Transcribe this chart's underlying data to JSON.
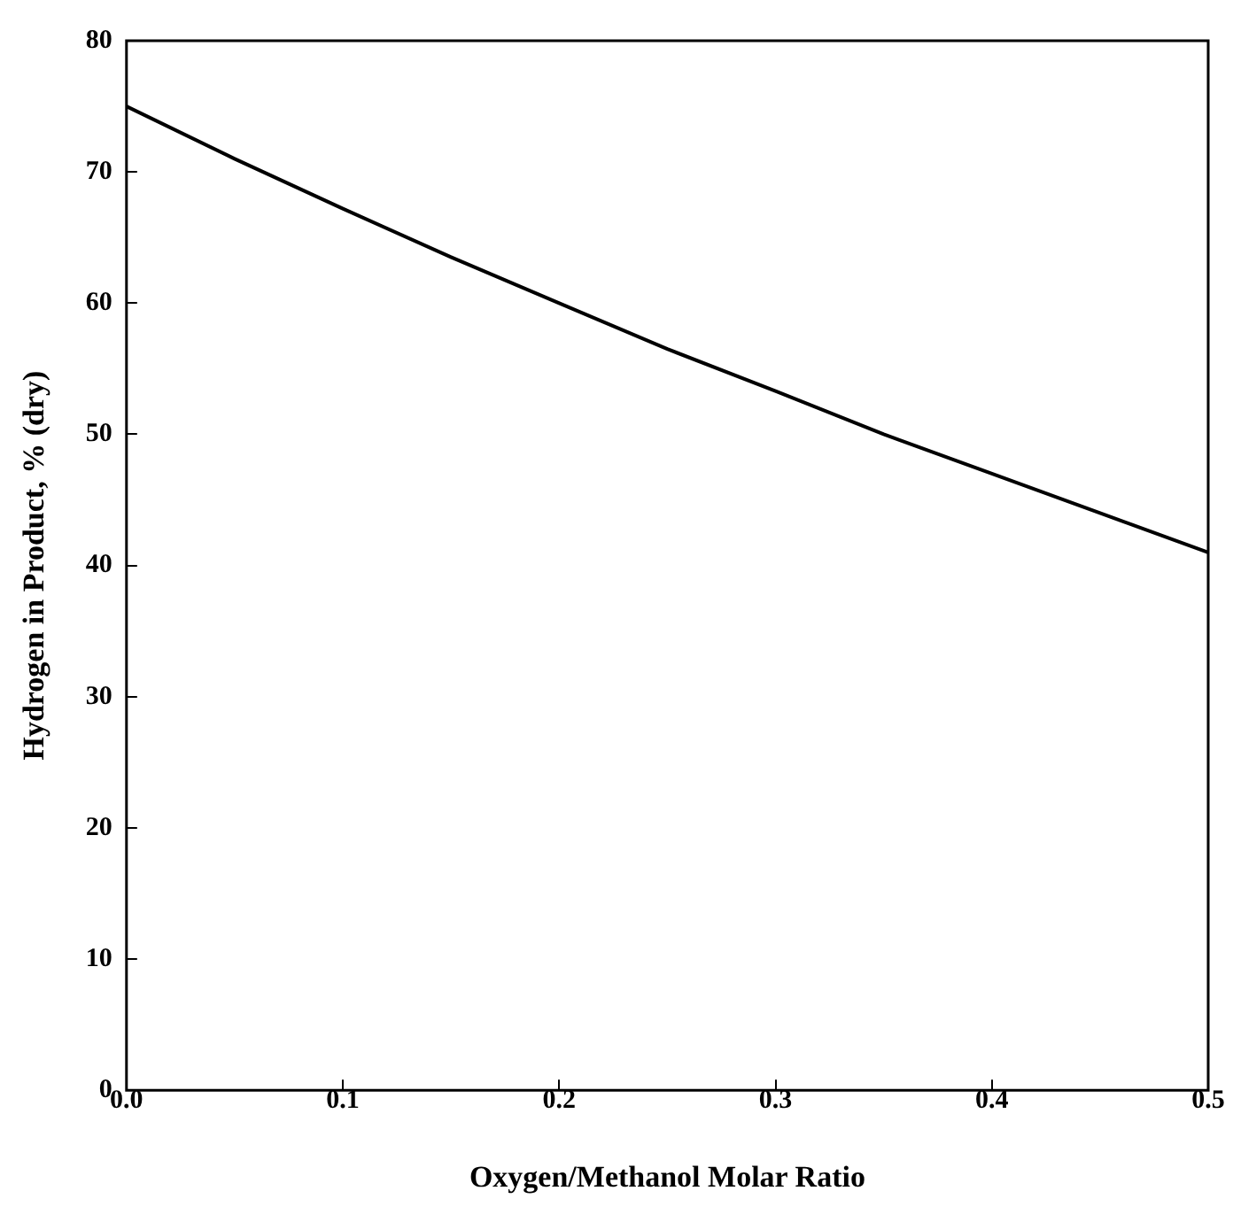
{
  "chart_data": {
    "type": "line",
    "xlabel": "Oxygen/Methanol Molar Ratio",
    "ylabel": "Hydrogen in Product, % (dry)",
    "x": [
      0,
      0.05,
      0.1,
      0.15,
      0.2,
      0.25,
      0.3,
      0.35,
      0.4,
      0.45,
      0.5
    ],
    "series": [
      {
        "color": "#000000",
        "values": [
          75,
          71,
          67.2,
          63.5,
          60,
          56.5,
          53.3,
          50,
          47,
          44,
          41
        ]
      }
    ],
    "xlim": [
      0,
      0.5
    ],
    "xticks": [
      {
        "value": 0,
        "label": "0.0"
      },
      0.1,
      0.2,
      0.3,
      0.4,
      0.5
    ],
    "ylim": [
      0,
      80
    ],
    "yticks": [
      0,
      10,
      20,
      30,
      40,
      50,
      60,
      70,
      80
    ],
    "grid": false,
    "legend": false,
    "marker": "none",
    "line_style": "solid"
  }
}
